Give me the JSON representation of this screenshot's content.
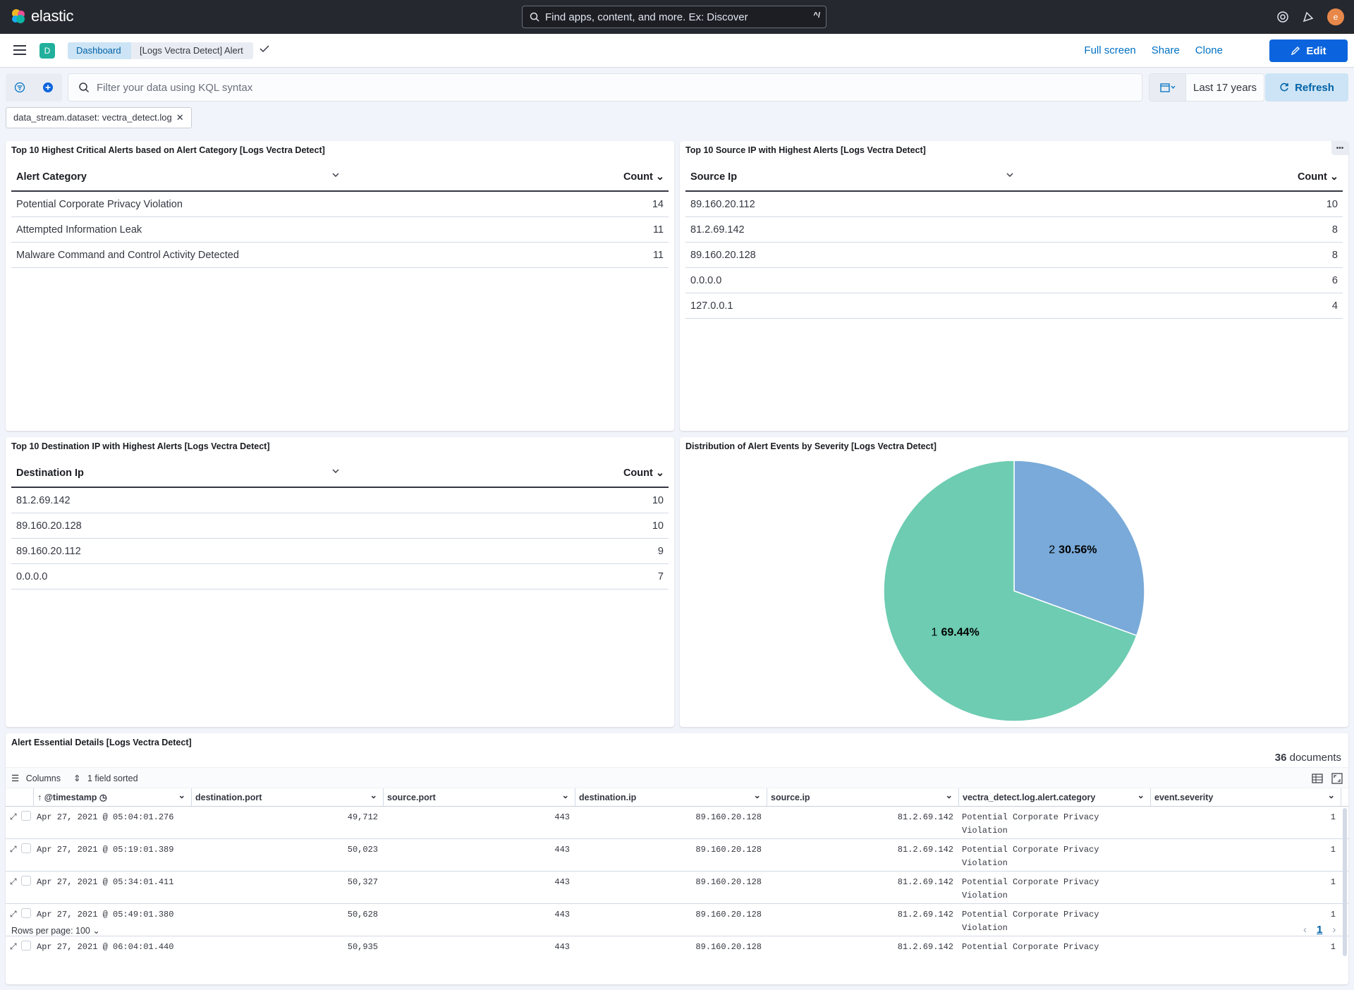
{
  "header": {
    "brand": "elastic",
    "search_placeholder": "Find apps, content, and more. Ex: Discover",
    "search_shortcut": "^/",
    "user_initial": "e"
  },
  "subheader": {
    "space_initial": "D",
    "breadcrumbs": [
      "Dashboard",
      "[Logs Vectra Detect] Alert"
    ],
    "links": [
      "Full screen",
      "Share",
      "Clone"
    ],
    "edit_label": "Edit"
  },
  "query": {
    "placeholder": "Filter your data using KQL syntax",
    "time_range": "Last 17 years",
    "refresh_label": "Refresh",
    "filter_pill": "data_stream.dataset: vectra_detect.log"
  },
  "panels": {
    "alert_category": {
      "title": "Top 10 Highest Critical Alerts based on Alert Category [Logs Vectra Detect]",
      "col1": "Alert Category",
      "col2": "Count",
      "rows": [
        {
          "label": "Potential Corporate Privacy Violation",
          "count": "14"
        },
        {
          "label": "Attempted Information Leak",
          "count": "11"
        },
        {
          "label": "Malware Command and Control Activity Detected",
          "count": "11"
        }
      ]
    },
    "source_ip": {
      "title": "Top 10 Source IP with Highest Alerts [Logs Vectra Detect]",
      "col1": "Source Ip",
      "col2": "Count",
      "rows": [
        {
          "label": "89.160.20.112",
          "count": "10"
        },
        {
          "label": "81.2.69.142",
          "count": "8"
        },
        {
          "label": "89.160.20.128",
          "count": "8"
        },
        {
          "label": "0.0.0.0",
          "count": "6"
        },
        {
          "label": "127.0.0.1",
          "count": "4"
        }
      ]
    },
    "dest_ip": {
      "title": "Top 10 Destination IP with Highest Alerts [Logs Vectra Detect]",
      "col1": "Destination Ip",
      "col2": "Count",
      "rows": [
        {
          "label": "81.2.69.142",
          "count": "10"
        },
        {
          "label": "89.160.20.128",
          "count": "10"
        },
        {
          "label": "89.160.20.112",
          "count": "9"
        },
        {
          "label": "0.0.0.0",
          "count": "7"
        }
      ]
    },
    "severity": {
      "title": "Distribution of Alert Events by Severity [Logs Vectra Detect]"
    },
    "details": {
      "title": "Alert Essential Details [Logs Vectra Detect]",
      "doc_count": "36",
      "doc_label": "documents",
      "columns_label": "Columns",
      "sorted_label": "1 field sorted",
      "headers": [
        "@timestamp",
        "destination.port",
        "source.port",
        "destination.ip",
        "source.ip",
        "vectra_detect.log.alert.category",
        "event.severity"
      ],
      "rows": [
        [
          "Apr 27, 2021 @ 05:04:01.276",
          "49,712",
          "443",
          "89.160.20.128",
          "81.2.69.142",
          "Potential Corporate Privacy Violation",
          "1"
        ],
        [
          "Apr 27, 2021 @ 05:19:01.389",
          "50,023",
          "443",
          "89.160.20.128",
          "81.2.69.142",
          "Potential Corporate Privacy Violation",
          "1"
        ],
        [
          "Apr 27, 2021 @ 05:34:01.411",
          "50,327",
          "443",
          "89.160.20.128",
          "81.2.69.142",
          "Potential Corporate Privacy Violation",
          "1"
        ],
        [
          "Apr 27, 2021 @ 05:49:01.380",
          "50,628",
          "443",
          "89.160.20.128",
          "81.2.69.142",
          "Potential Corporate Privacy Violation",
          "1"
        ],
        [
          "Apr 27, 2021 @ 06:04:01.440",
          "50,935",
          "443",
          "89.160.20.128",
          "81.2.69.142",
          "Potential Corporate Privacy",
          "1"
        ]
      ],
      "rows_per_page": "Rows per page: 100",
      "page": "1"
    }
  },
  "chart_data": {
    "type": "pie",
    "title": "Distribution of Alert Events by Severity [Logs Vectra Detect]",
    "slices": [
      {
        "label": "2",
        "pct": 30.56,
        "pct_label": "30.56%",
        "color": "#79aad9"
      },
      {
        "label": "1",
        "pct": 69.44,
        "pct_label": "69.44%",
        "color": "#6dccb1"
      }
    ]
  }
}
